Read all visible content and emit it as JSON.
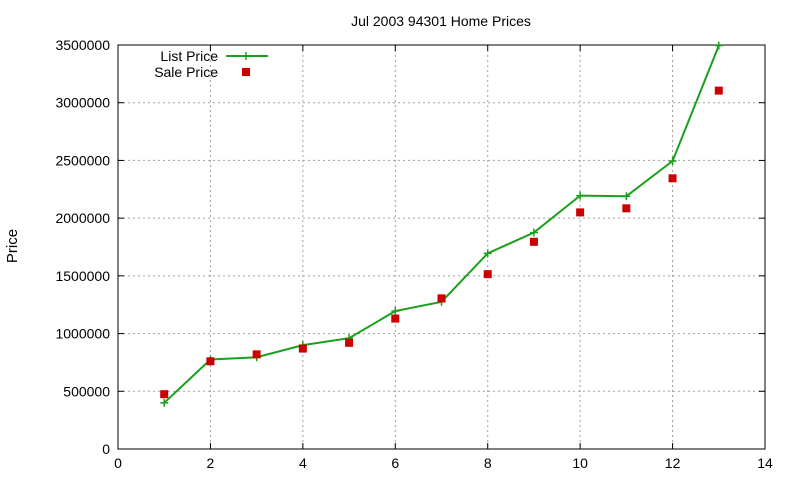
{
  "chart_data": {
    "type": "line",
    "title": "Jul 2003 94301 Home Prices",
    "xlabel": "",
    "ylabel": "Price",
    "xlim": [
      0,
      14
    ],
    "ylim": [
      0,
      3500000
    ],
    "xticks": [
      0,
      2,
      4,
      6,
      8,
      10,
      12,
      14
    ],
    "yticks": [
      0,
      500000,
      1000000,
      1500000,
      2000000,
      2500000,
      3000000,
      3500000
    ],
    "grid": true,
    "legend_position": "top-left",
    "series": [
      {
        "name": "List Price",
        "style": "line+markers",
        "marker": "plus",
        "color": "#1aa01a",
        "points": [
          [
            1,
            400000
          ],
          [
            2,
            775000
          ],
          [
            3,
            795000
          ],
          [
            4,
            900000
          ],
          [
            5,
            960000
          ],
          [
            6,
            1195000
          ],
          [
            7,
            1275000
          ],
          [
            8,
            1695000
          ],
          [
            9,
            1875000
          ],
          [
            10,
            2195000
          ],
          [
            11,
            2190000
          ],
          [
            12,
            2495000
          ],
          [
            13,
            3495000
          ]
        ]
      },
      {
        "name": "Sale Price",
        "style": "markers",
        "marker": "square",
        "color": "#cc0000",
        "points": [
          [
            1,
            475000
          ],
          [
            2,
            760000
          ],
          [
            3,
            820000
          ],
          [
            4,
            870000
          ],
          [
            5,
            920000
          ],
          [
            6,
            1130000
          ],
          [
            7,
            1305000
          ],
          [
            8,
            1515000
          ],
          [
            9,
            1795000
          ],
          [
            10,
            2050000
          ],
          [
            11,
            2085000
          ],
          [
            12,
            2345000
          ],
          [
            13,
            3105000
          ]
        ]
      }
    ]
  }
}
